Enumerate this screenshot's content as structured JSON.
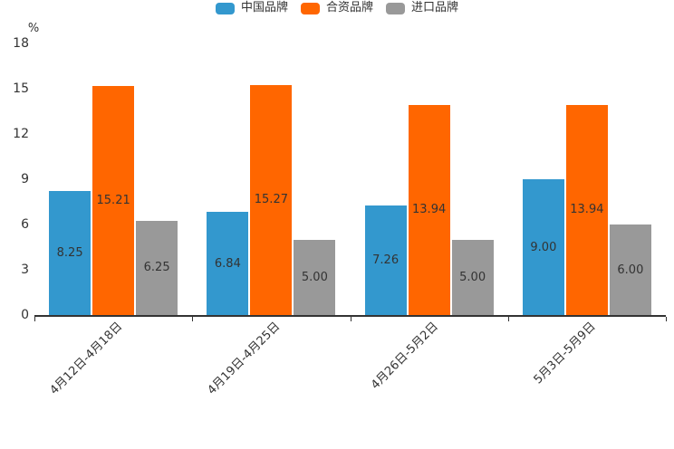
{
  "chart_data": {
    "type": "bar",
    "title": "",
    "categories": [
      "4月12日-4月18日",
      "4月19日-4月25日",
      "4月26日-5月2日",
      "5月3日-5月9日"
    ],
    "series": [
      {
        "name": "中国品牌",
        "color": "#3398CE",
        "values": [
          8.25,
          6.84,
          7.26,
          9.0
        ],
        "labels": [
          "8.25",
          "6.84",
          "7.26",
          "9.00"
        ]
      },
      {
        "name": "合资品牌",
        "color": "#FF6600",
        "values": [
          15.21,
          15.27,
          13.94,
          13.94
        ],
        "labels": [
          "15.21",
          "15.27",
          "13.94",
          "13.94"
        ]
      },
      {
        "name": "进口品牌",
        "color": "#999999",
        "values": [
          6.25,
          5.0,
          5.0,
          6.0
        ],
        "labels": [
          "6.25",
          "5.00",
          "5.00",
          "6.00"
        ]
      }
    ],
    "y_axis": {
      "label": "%",
      "ticks": [
        0,
        3,
        6,
        9,
        12,
        15,
        18
      ],
      "min": 0,
      "max": 18
    },
    "x_axis": {
      "label_rotation_deg": -45
    },
    "legend_position": "top-center",
    "grid": false,
    "value_label_position": "inside-center",
    "text_color": "#333333",
    "axis_color": "#333333"
  }
}
